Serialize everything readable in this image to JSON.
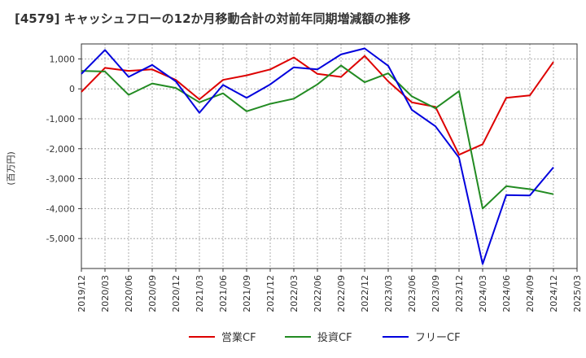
{
  "chart_data": {
    "type": "line",
    "title": "[4579]  キャッシュフローの12か月移動合計の対前年同期増減額の推移",
    "ylabel": "(百万円)",
    "ylim": [
      -6000,
      1500
    ],
    "yticks": [
      1000,
      0,
      -1000,
      -2000,
      -3000,
      -4000,
      -5000
    ],
    "ytick_labels": [
      "1,000",
      "0",
      "-1,000",
      "-2,000",
      "-3,000",
      "-4,000",
      "-5,000"
    ],
    "x_tick_labels": [
      "2019/12",
      "2020/03",
      "2020/06",
      "2020/09",
      "2020/12",
      "2021/03",
      "2021/06",
      "2021/09",
      "2021/12",
      "2022/03",
      "2022/06",
      "2022/09",
      "2022/12",
      "2023/03",
      "2023/06",
      "2023/09",
      "2023/12",
      "2024/03",
      "2024/06",
      "2024/09",
      "2024/12",
      "2025/03"
    ],
    "grid": true,
    "legend_position": "bottom",
    "series": [
      {
        "name": "営業CF",
        "color": "#dd0000",
        "values": [
          -100,
          700,
          600,
          650,
          300,
          -350,
          300,
          450,
          650,
          1050,
          500,
          400,
          1100,
          250,
          -450,
          -600,
          -2200,
          -1850,
          -300,
          -220,
          900,
          null
        ]
      },
      {
        "name": "投資CF",
        "color": "#228b22",
        "values": [
          600,
          580,
          -200,
          180,
          30,
          -450,
          -150,
          -750,
          -500,
          -330,
          150,
          780,
          220,
          520,
          -250,
          -650,
          -80,
          -4000,
          -3250,
          -3350,
          -3520,
          null
        ]
      },
      {
        "name": "フリーCF",
        "color": "#0000dd",
        "values": [
          500,
          1300,
          400,
          800,
          250,
          -800,
          130,
          -300,
          150,
          720,
          650,
          1150,
          1350,
          770,
          -700,
          -1250,
          -2300,
          -5850,
          -3550,
          -3560,
          -2620,
          null
        ]
      }
    ]
  }
}
